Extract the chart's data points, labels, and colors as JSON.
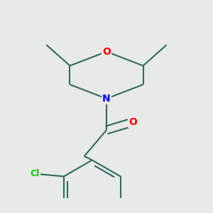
{
  "background_color": "#e8eae8",
  "bond_color": "#2d6b5e",
  "atom_colors": {
    "O": "#ff0000",
    "N": "#0000ff",
    "Cl": "#00cc00",
    "C": "#2d6b5e"
  },
  "bond_width": 1.5,
  "figsize": [
    3.0,
    3.0
  ],
  "dpi": 100
}
